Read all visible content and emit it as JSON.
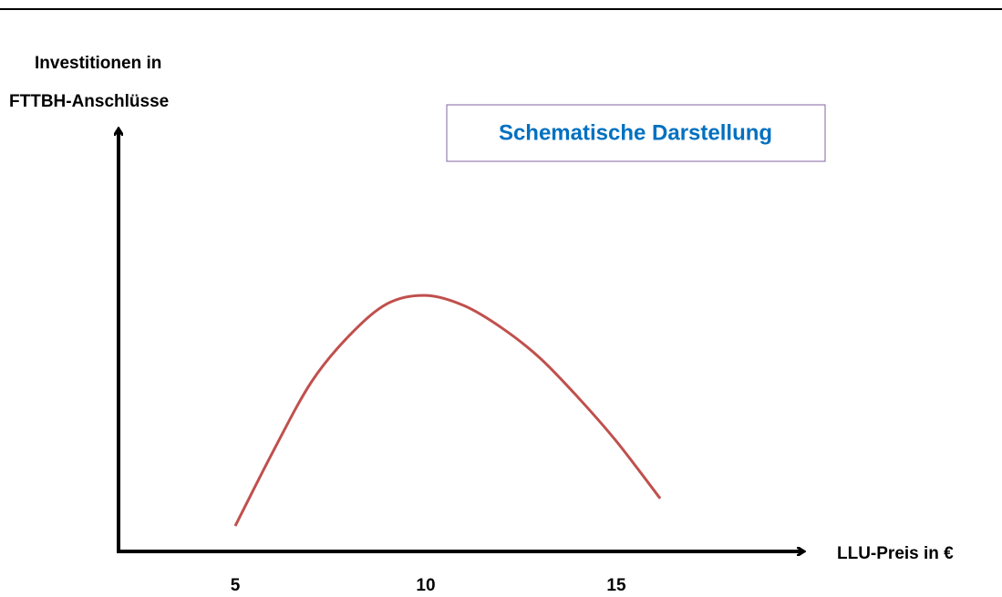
{
  "chart_data": {
    "type": "line",
    "annotation": "Schematische Darstellung",
    "ylabel": [
      "Investitionen in",
      "FTTBH-Anschlüsse"
    ],
    "xlabel": "LLU-Preis in €",
    "x": [
      5,
      6,
      7,
      8,
      9,
      10,
      11,
      12,
      13,
      14,
      15,
      16.15
    ],
    "series": [
      {
        "color": "#c0504d",
        "values": [
          6,
          23.7,
          40,
          51,
          58.5,
          60.4,
          58,
          52.7,
          45.6,
          36.3,
          26,
          12.5
        ]
      }
    ],
    "xlim": [
      2,
      20
    ],
    "ylim": [
      0,
      100
    ],
    "xticks": [
      5,
      10,
      15
    ]
  }
}
